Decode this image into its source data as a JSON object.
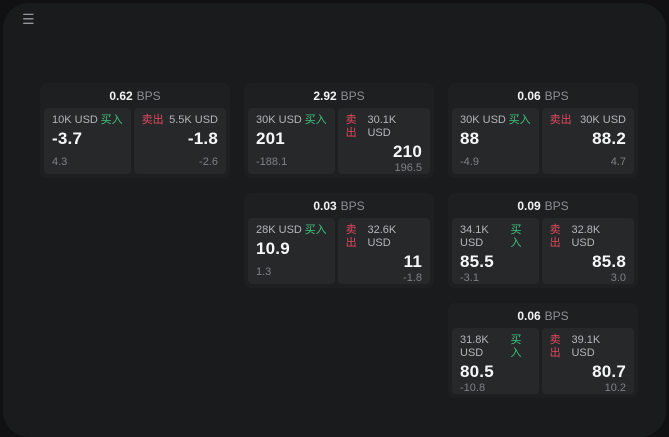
{
  "icons": {
    "menu": "☰"
  },
  "colors": {
    "background": "#111113",
    "panel": "#1a1b1d",
    "card": "#1e1f21",
    "tile": "#27282a",
    "buy_accent": "#3fc47c",
    "sell_accent": "#e0485e"
  },
  "cards": [
    {
      "bps": "0.62",
      "bps_unit": "BPS",
      "buy": {
        "size": "10K USD",
        "label": "买入",
        "price": "-3.7",
        "sub": "4.3"
      },
      "sell": {
        "label": "卖出",
        "size": "5.5K USD",
        "price": "-1.8",
        "sub": "-2.6"
      }
    },
    {
      "bps": "2.92",
      "bps_unit": "BPS",
      "buy": {
        "size": "30K USD",
        "label": "买入",
        "price": "201",
        "sub": "-188.1"
      },
      "sell": {
        "label": "卖出",
        "size": "30.1K USD",
        "price": "210",
        "sub": "196.5"
      }
    },
    {
      "bps": "0.06",
      "bps_unit": "BPS",
      "buy": {
        "size": "30K USD",
        "label": "买入",
        "price": "88",
        "sub": "-4.9"
      },
      "sell": {
        "label": "卖出",
        "size": "30K USD",
        "price": "88.2",
        "sub": "4.7"
      }
    },
    {
      "bps": "0.03",
      "bps_unit": "BPS",
      "buy": {
        "size": "28K USD",
        "label": "买入",
        "price": "10.9",
        "sub": "1.3"
      },
      "sell": {
        "label": "卖出",
        "size": "32.6K USD",
        "price": "11",
        "sub": "-1.8"
      }
    },
    {
      "bps": "0.09",
      "bps_unit": "BPS",
      "buy": {
        "size": "34.1K USD",
        "label": "买入",
        "price": "85.5",
        "sub": "-3.1"
      },
      "sell": {
        "label": "卖出",
        "size": "32.8K USD",
        "price": "85.8",
        "sub": "3.0"
      }
    },
    {
      "bps": "0.06",
      "bps_unit": "BPS",
      "buy": {
        "size": "31.8K USD",
        "label": "买入",
        "price": "80.5",
        "sub": "-10.8"
      },
      "sell": {
        "label": "卖出",
        "size": "39.1K USD",
        "price": "80.7",
        "sub": "10.2"
      }
    }
  ]
}
